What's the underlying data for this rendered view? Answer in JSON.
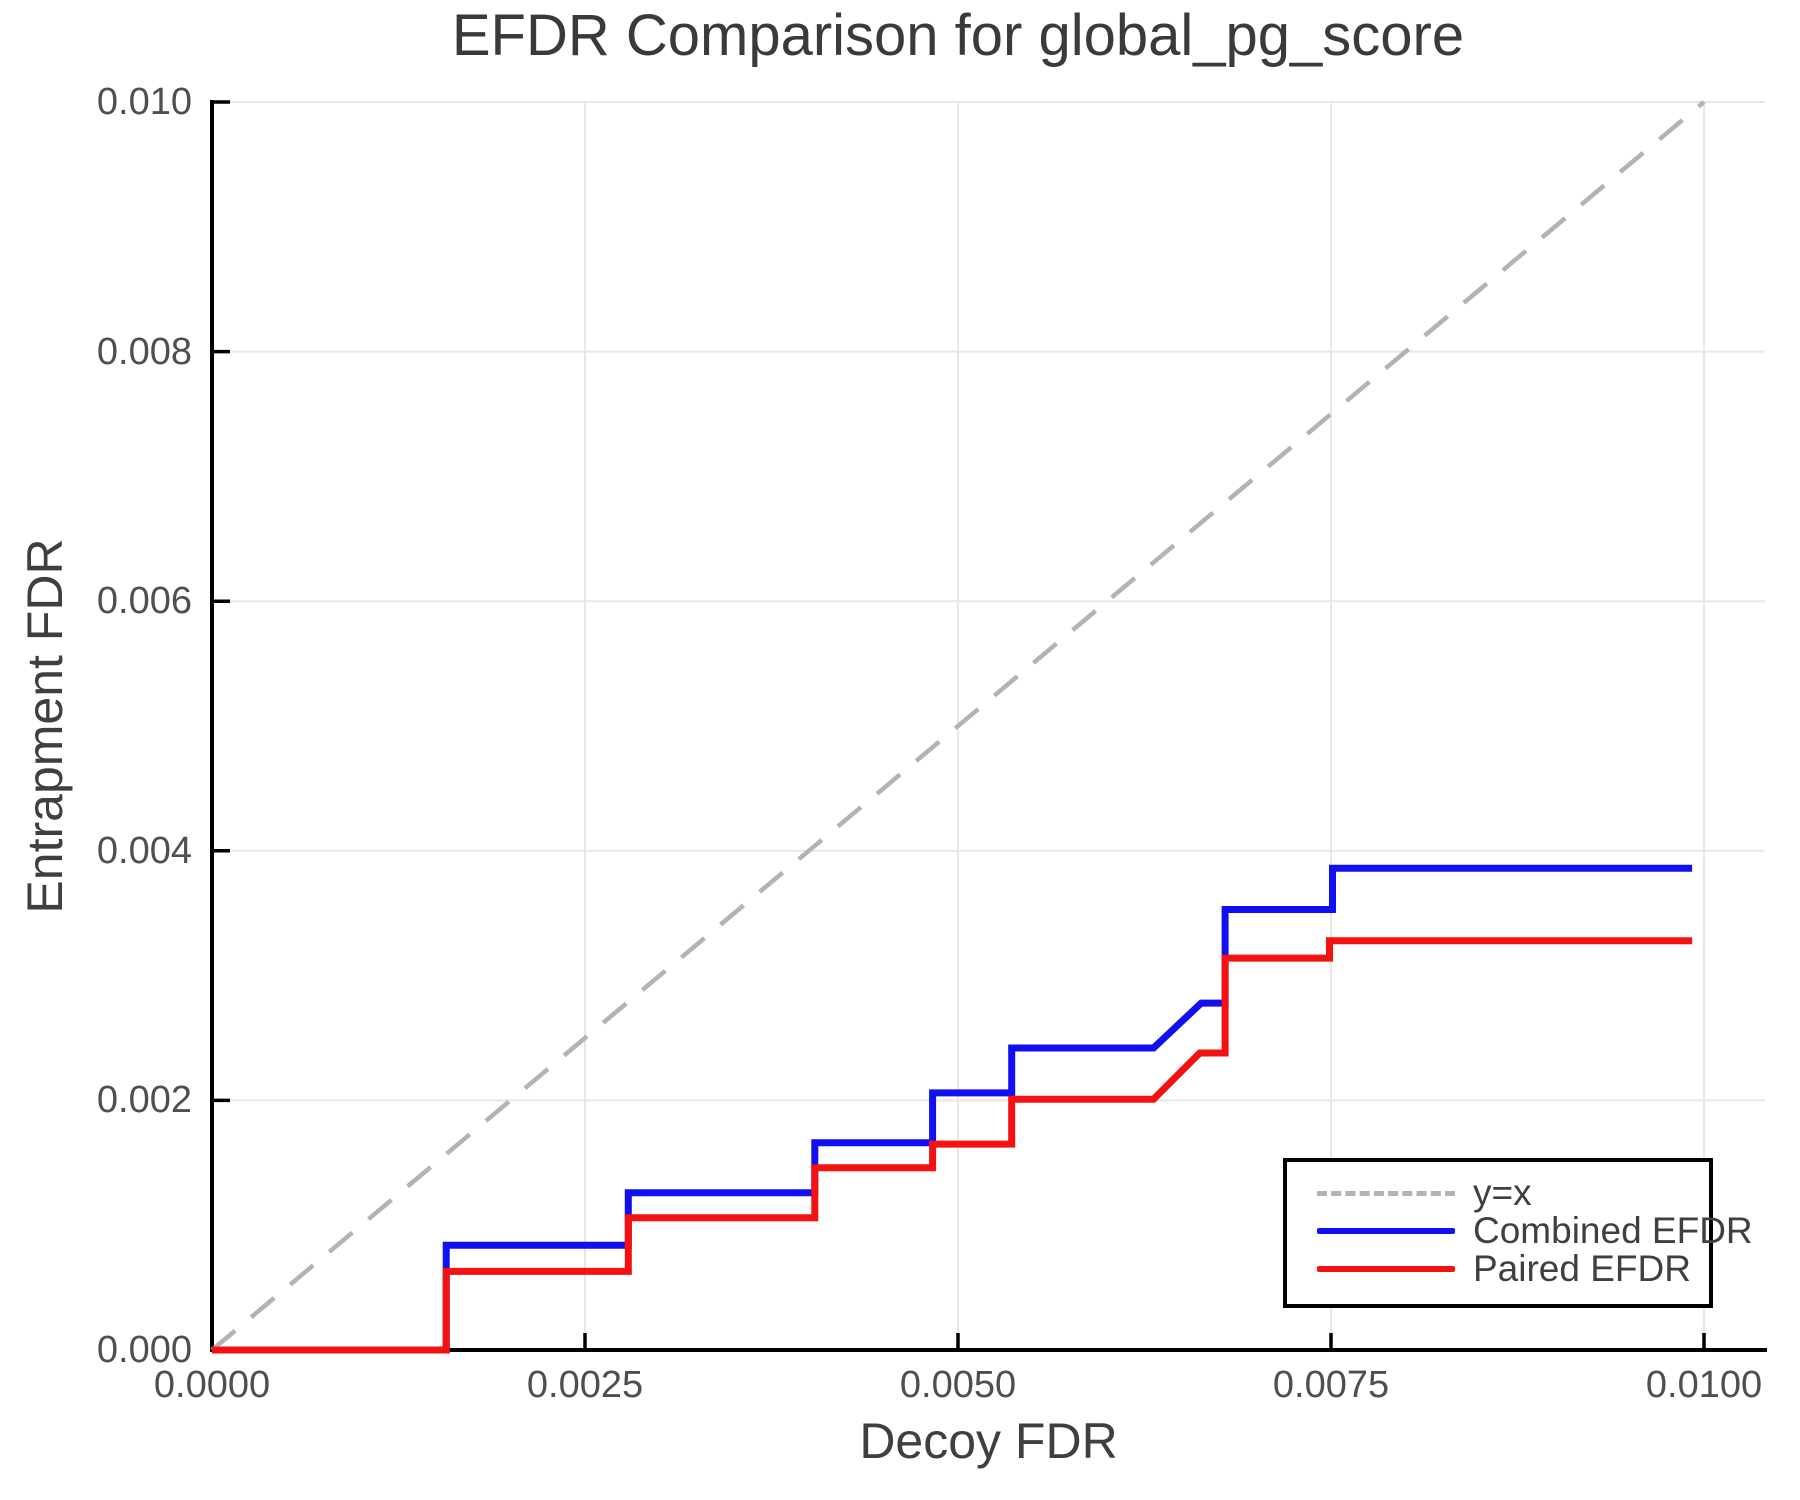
{
  "title": "EFDR Comparison for global_pg_score",
  "colors": {
    "combined": "#1010f0",
    "paired": "#f31111",
    "identity": "#b3b3b3",
    "grid": "#e7e7e7",
    "spine": "#000000",
    "text": "#3f3f3f"
  },
  "chart_data": {
    "type": "line",
    "title": "EFDR Comparison for global_pg_score",
    "xlabel": "Decoy FDR",
    "ylabel": "Entrapment FDR",
    "xlim": [
      0,
      0.0104
    ],
    "ylim": [
      0,
      0.01
    ],
    "grid": true,
    "x_ticks": {
      "values": [
        0,
        0.0025,
        0.005,
        0.0075,
        0.01
      ],
      "labels": [
        "0.0000",
        "0.0025",
        "0.0050",
        "0.0075",
        "0.0100"
      ]
    },
    "y_ticks": {
      "values": [
        0,
        0.002,
        0.004,
        0.006,
        0.008,
        0.01
      ],
      "labels": [
        "0.000",
        "0.002",
        "0.004",
        "0.006",
        "0.008",
        "0.010"
      ]
    },
    "legend": {
      "position": "lower right",
      "entries": [
        {
          "label": "y=x",
          "style": "dashed",
          "color": "#b3b3b3"
        },
        {
          "label": "Combined EFDR",
          "style": "solid",
          "color": "#1010f0"
        },
        {
          "label": "Paired EFDR",
          "style": "solid",
          "color": "#f31111"
        }
      ]
    },
    "series": [
      {
        "name": "y=x",
        "style": "dashed",
        "color": "#b3b3b3",
        "width": 4.5,
        "points": [
          [
            0,
            0
          ],
          [
            0.01,
            0.01
          ]
        ]
      },
      {
        "name": "Combined EFDR",
        "style": "solid",
        "color": "#1010f0",
        "width": 7,
        "points": [
          [
            0,
            0
          ],
          [
            0.00157,
            0
          ],
          [
            0.00157,
            0.00084
          ],
          [
            0.00279,
            0.00084
          ],
          [
            0.00279,
            0.00126
          ],
          [
            0.00404,
            0.00126
          ],
          [
            0.00404,
            0.00166
          ],
          [
            0.00483,
            0.00166
          ],
          [
            0.00483,
            0.00206
          ],
          [
            0.00536,
            0.00206
          ],
          [
            0.00536,
            0.00242
          ],
          [
            0.00631,
            0.00242
          ],
          [
            0.00663,
            0.00278
          ],
          [
            0.00679,
            0.00278
          ],
          [
            0.00679,
            0.00353
          ],
          [
            0.00751,
            0.00353
          ],
          [
            0.00751,
            0.00386
          ],
          [
            0.00992,
            0.00386
          ]
        ]
      },
      {
        "name": "Paired EFDR",
        "style": "solid",
        "color": "#f31111",
        "width": 7,
        "points": [
          [
            0,
            0
          ],
          [
            0.00157,
            0
          ],
          [
            0.00157,
            0.00063
          ],
          [
            0.00279,
            0.00063
          ],
          [
            0.00279,
            0.00106
          ],
          [
            0.00404,
            0.00106
          ],
          [
            0.00404,
            0.00146
          ],
          [
            0.00483,
            0.00146
          ],
          [
            0.00483,
            0.00165
          ],
          [
            0.00536,
            0.00165
          ],
          [
            0.00536,
            0.00201
          ],
          [
            0.00631,
            0.00201
          ],
          [
            0.00662,
            0.00238
          ],
          [
            0.00679,
            0.00238
          ],
          [
            0.00679,
            0.00314
          ],
          [
            0.00749,
            0.00314
          ],
          [
            0.00749,
            0.00328
          ],
          [
            0.00992,
            0.00328
          ]
        ]
      }
    ]
  }
}
